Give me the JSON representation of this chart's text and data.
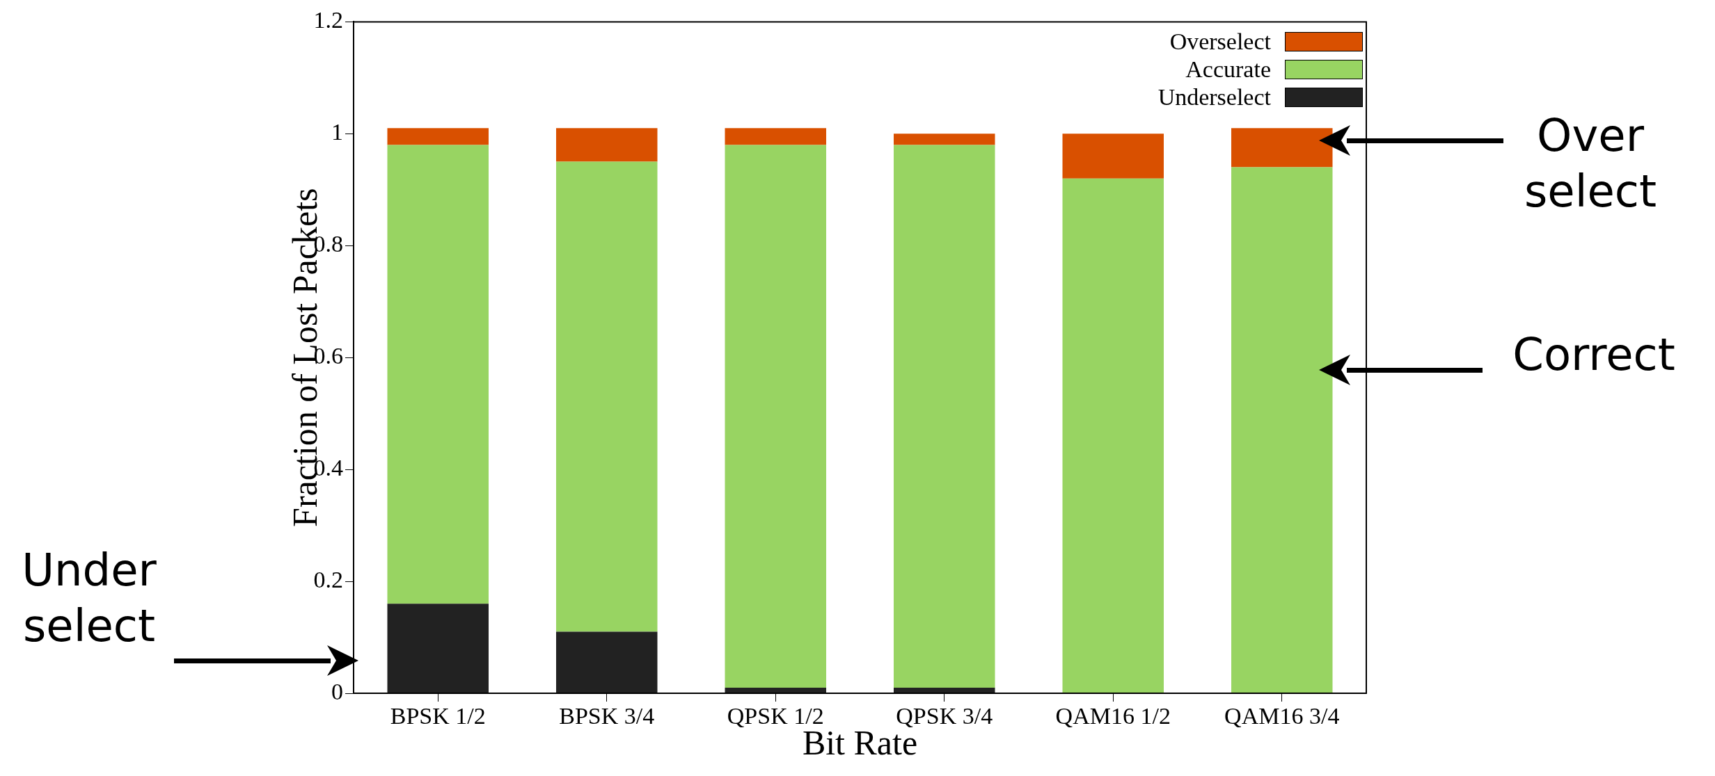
{
  "chart_data": {
    "type": "bar",
    "stacked": true,
    "xlabel": "Bit Rate",
    "ylabel": "Fraction of Lost Packets",
    "categories": [
      "BPSK 1/2",
      "BPSK 3/4",
      "QPSK 1/2",
      "QPSK 3/4",
      "QAM16 1/2",
      "QAM16 3/4"
    ],
    "series": [
      {
        "name": "Underselect",
        "color": "#222222",
        "values": [
          0.16,
          0.11,
          0.01,
          0.01,
          0,
          0
        ]
      },
      {
        "name": "Accurate",
        "color": "#98d462",
        "values": [
          0.82,
          0.84,
          0.97,
          0.97,
          0.92,
          0.94
        ]
      },
      {
        "name": "Overselect",
        "color": "#d95000",
        "values": [
          0.03,
          0.06,
          0.03,
          0.02,
          0.08,
          0.07
        ]
      }
    ],
    "ylim": [
      0,
      1.2
    ],
    "yticks": [
      0,
      0.2,
      0.4,
      0.6,
      0.8,
      1,
      1.2
    ],
    "grid": false,
    "legend": "top right",
    "annotations": [
      "Over select",
      "Correct",
      "Under select"
    ]
  }
}
